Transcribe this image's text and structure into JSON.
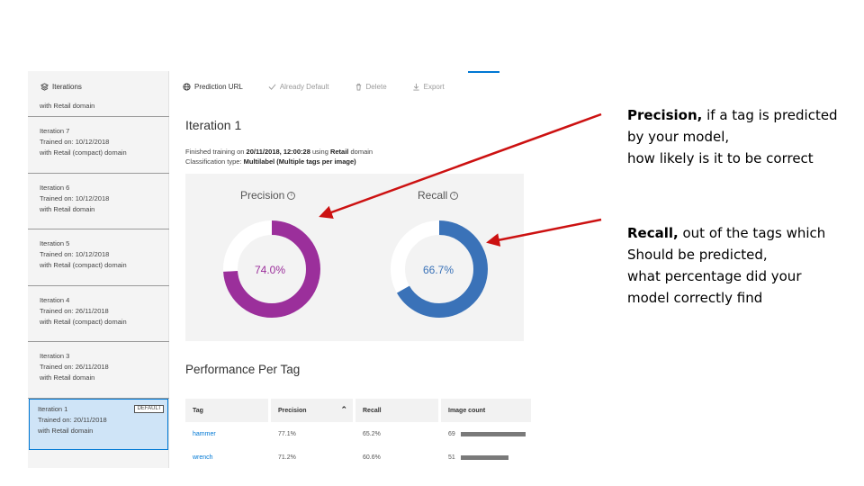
{
  "sidebar": {
    "title": "Iterations",
    "partial_top_line": "with Retail domain",
    "items": [
      {
        "name": "Iteration 7",
        "trained": "Trained on: 10/12/2018",
        "domain": "with Retail (compact) domain"
      },
      {
        "name": "Iteration 6",
        "trained": "Trained on: 10/12/2018",
        "domain": "with Retail domain"
      },
      {
        "name": "Iteration 5",
        "trained": "Trained on: 10/12/2018",
        "domain": "with Retail (compact) domain"
      },
      {
        "name": "Iteration 4",
        "trained": "Trained on: 26/11/2018",
        "domain": "with Retail (compact) domain"
      },
      {
        "name": "Iteration 3",
        "trained": "Trained on: 26/11/2018",
        "domain": "with Retail domain"
      }
    ],
    "selected": {
      "name": "Iteration 1",
      "trained": "Trained on: 20/11/2018",
      "domain": "with Retail domain",
      "badge": "DEFAULT"
    }
  },
  "toolbar": {
    "prediction_url": "Prediction URL",
    "already_default": "Already Default",
    "delete": "Delete",
    "export": "Export"
  },
  "main": {
    "title": "Iteration 1",
    "finished_prefix": "Finished training on ",
    "finished_date": "20/11/2018, 12:00:28",
    "finished_mid": " using ",
    "finished_domain": "Retail",
    "finished_suffix": " domain",
    "classification_prefix": "Classification type: ",
    "classification_value": "Multilabel (Multiple tags per image)"
  },
  "metrics": {
    "precision_label": "Precision",
    "precision_value": "74.0%",
    "precision_fraction": 0.74,
    "precision_color": "#9b2f9b",
    "recall_label": "Recall",
    "recall_value": "66.7%",
    "recall_fraction": 0.667,
    "recall_color": "#3a72b8",
    "track_color": "#ffffff"
  },
  "performance": {
    "title": "Performance Per Tag",
    "columns": [
      "Tag",
      "Precision",
      "Recall",
      "Image count"
    ],
    "rows": [
      {
        "tag": "hammer",
        "precision": "77.1%",
        "recall": "65.2%",
        "count": "69",
        "count_value": 69
      },
      {
        "tag": "wrench",
        "precision": "71.2%",
        "recall": "60.6%",
        "count": "51",
        "count_value": 51
      }
    ]
  },
  "annotations": {
    "precision_term": "Precision,",
    "precision_line1": " if a tag is predicted",
    "precision_line2": "by your model,",
    "precision_line3": "how likely is it to be correct",
    "recall_term": "Recall,",
    "recall_line1": " out of the tags which",
    "recall_line2": "Should be predicted,",
    "recall_line3": "what percentage did your",
    "recall_line4": "model correctly find",
    "arrow_color": "#cc1111"
  }
}
